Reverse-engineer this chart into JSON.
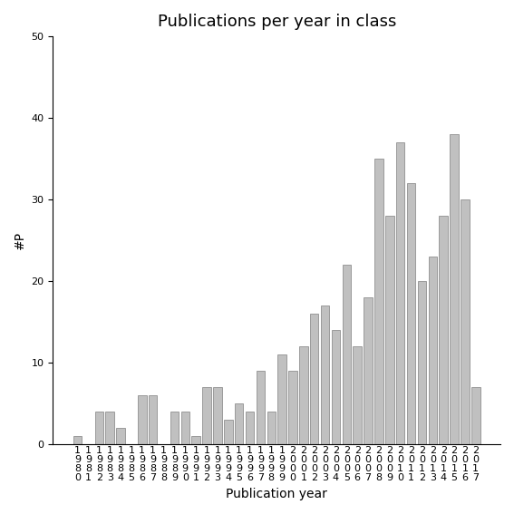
{
  "title": "Publications per year in class",
  "xlabel": "Publication year",
  "ylabel": "#P",
  "years": [
    1980,
    1981,
    1982,
    1983,
    1984,
    1985,
    1986,
    1987,
    1988,
    1989,
    1990,
    1991,
    1992,
    1993,
    1994,
    1995,
    1996,
    1997,
    1998,
    1999,
    2000,
    2001,
    2002,
    2003,
    2004,
    2005,
    2006,
    2007,
    2008,
    2009,
    2010,
    2011,
    2012,
    2013,
    2014,
    2015,
    2016,
    2017
  ],
  "values": [
    1,
    0,
    4,
    4,
    2,
    0,
    6,
    6,
    0,
    4,
    4,
    1,
    7,
    7,
    3,
    5,
    4,
    9,
    4,
    11,
    9,
    12,
    16,
    17,
    14,
    22,
    12,
    18,
    35,
    28,
    37,
    32,
    20,
    23,
    28,
    38,
    30,
    7
  ],
  "bar_color": "#c0c0c0",
  "bar_edgecolor": "#808080",
  "ylim": [
    0,
    50
  ],
  "yticks": [
    0,
    10,
    20,
    30,
    40,
    50
  ],
  "background_color": "#ffffff",
  "title_fontsize": 13,
  "label_fontsize": 10,
  "tick_fontsize": 8
}
